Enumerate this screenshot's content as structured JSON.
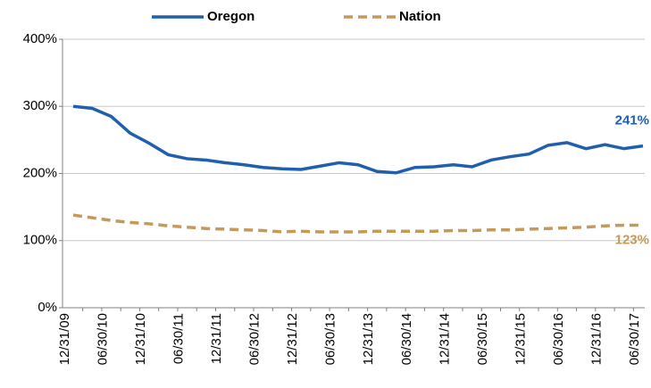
{
  "chart_data": {
    "type": "line",
    "categories": [
      "12/31/09",
      null,
      "06/30/10",
      null,
      "12/31/10",
      null,
      "06/30/11",
      null,
      "12/31/11",
      null,
      "06/30/12",
      null,
      "12/31/12",
      null,
      "06/30/13",
      null,
      "12/31/13",
      null,
      "06/30/14",
      null,
      "12/31/14",
      null,
      "06/30/15",
      null,
      "12/31/15",
      null,
      "06/30/16",
      null,
      "12/31/16",
      null,
      "06/30/17"
    ],
    "series": [
      {
        "name": "Oregon",
        "color": "#1f5fad",
        "dash": false,
        "values": [
          300,
          297,
          285,
          260,
          245,
          228,
          222,
          220,
          216,
          213,
          209,
          207,
          206,
          211,
          216,
          213,
          203,
          201,
          209,
          210,
          213,
          210,
          220,
          225,
          229,
          242,
          246,
          237,
          243,
          237,
          241
        ],
        "value_labels": [
          null,
          null,
          null,
          null,
          null,
          null,
          null,
          null,
          null,
          null,
          null,
          null,
          null,
          null,
          null,
          null,
          null,
          null,
          null,
          null,
          null,
          null,
          null,
          null,
          null,
          null,
          null,
          null,
          null,
          null,
          "241%"
        ]
      },
      {
        "name": "Nation",
        "color": "#c49a5a",
        "dash": true,
        "values": [
          138,
          134,
          130,
          127,
          125,
          122,
          120,
          118,
          117,
          116,
          115,
          113,
          114,
          113,
          113,
          113,
          114,
          114,
          114,
          114,
          115,
          115,
          116,
          116,
          117,
          118,
          119,
          120,
          122,
          123,
          123
        ],
        "value_labels": [
          null,
          null,
          null,
          null,
          null,
          null,
          null,
          null,
          null,
          null,
          null,
          null,
          null,
          null,
          null,
          null,
          null,
          null,
          null,
          null,
          null,
          null,
          null,
          null,
          null,
          null,
          null,
          null,
          null,
          null,
          "123%"
        ]
      }
    ],
    "ylim": [
      0,
      400
    ],
    "yticks": [
      {
        "value": 0,
        "label": "0%"
      },
      {
        "value": 100,
        "label": "100%"
      },
      {
        "value": 200,
        "label": "200%"
      },
      {
        "value": 300,
        "label": "300%"
      },
      {
        "value": 400,
        "label": "400%"
      }
    ],
    "grid": true,
    "legend": "top"
  }
}
